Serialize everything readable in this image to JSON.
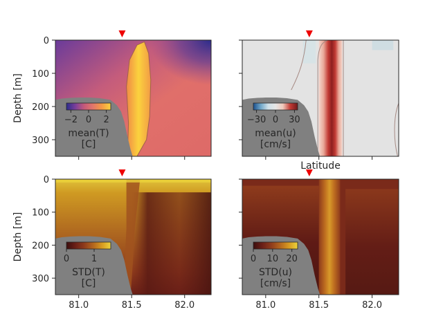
{
  "chart_data": [
    {
      "type": "heatmap",
      "panel": "top-left",
      "field": "mean(T)",
      "xlim": [
        80.78,
        82.25
      ],
      "ylim": [
        350,
        0
      ],
      "xticks": [
        "81.0",
        "81.5",
        "82.0"
      ],
      "xtick_values": [
        81.0,
        81.5,
        82.0
      ],
      "show_xticklabels": false,
      "yticks": [
        "0",
        "100",
        "200",
        "300"
      ],
      "ytick_values": [
        0,
        100,
        200,
        300
      ],
      "ylabel": "Depth [m]",
      "marker_lat": 81.41,
      "colorbar": {
        "ticks": [
          "−2",
          "0",
          "2"
        ],
        "tick_values": [
          -2,
          0,
          2
        ],
        "range": [
          -2.5,
          2.5
        ],
        "label_lines": [
          "mean(T)",
          "[C]"
        ]
      },
      "colors": [
        "#2b2c8c",
        "#7a3f9a",
        "#c55a7a",
        "#e3776a",
        "#f59a45",
        "#fbd23e"
      ]
    },
    {
      "type": "heatmap",
      "panel": "top-right",
      "field": "mean(u)",
      "xlim": [
        80.78,
        82.25
      ],
      "ylim": [
        350,
        0
      ],
      "xticks": [
        "81.0",
        "81.5",
        "82.0"
      ],
      "xtick_values": [
        81.0,
        81.5,
        82.0
      ],
      "show_xticklabels": false,
      "yticks": [
        "0",
        "100",
        "200",
        "300"
      ],
      "ytick_values": [
        0,
        100,
        200,
        300
      ],
      "show_yticklabels": false,
      "marker_lat": 81.41,
      "colorbar": {
        "ticks": [
          "−30",
          "0",
          "30"
        ],
        "tick_values": [
          -30,
          0,
          30
        ],
        "range": [
          -35,
          35
        ],
        "label_lines": [
          "mean(u)",
          "[cm/s]"
        ]
      },
      "colors": [
        "#1c4f8c",
        "#6fa6c8",
        "#cfe0e8",
        "#e6e6e6",
        "#f0c9bc",
        "#c23a34",
        "#6e1a1a"
      ]
    },
    {
      "type": "heatmap",
      "panel": "bottom-left",
      "field": "STD(T)",
      "xlim": [
        80.78,
        82.25
      ],
      "ylim": [
        350,
        0
      ],
      "xticks": [
        "81.0",
        "81.5",
        "82.0"
      ],
      "xtick_values": [
        81.0,
        81.5,
        82.0
      ],
      "yticks": [
        "0",
        "100",
        "200",
        "300"
      ],
      "ytick_values": [
        0,
        100,
        200,
        300
      ],
      "ylabel": "Depth [m]",
      "marker_lat": 81.41,
      "colorbar": {
        "ticks": [
          "0",
          "1"
        ],
        "tick_values": [
          0,
          1
        ],
        "range": [
          0,
          1.6
        ],
        "label_lines": [
          "STD(T)",
          "[C]"
        ]
      },
      "colors": [
        "#3b0e0e",
        "#6a1f17",
        "#8e3b1c",
        "#b3651e",
        "#d79a20",
        "#ecd33b"
      ]
    },
    {
      "type": "heatmap",
      "panel": "bottom-right",
      "field": "STD(u)",
      "xlim": [
        80.78,
        82.25
      ],
      "ylim": [
        350,
        0
      ],
      "xticks": [
        "81.0",
        "81.5",
        "82.0"
      ],
      "xtick_values": [
        81.0,
        81.5,
        82.0
      ],
      "yticks": [
        "0",
        "100",
        "200",
        "300"
      ],
      "ytick_values": [
        0,
        100,
        200,
        300
      ],
      "show_yticklabels": false,
      "title": "Latitude",
      "marker_lat": 81.41,
      "colorbar": {
        "ticks": [
          "0",
          "10",
          "20"
        ],
        "tick_values": [
          0,
          10,
          20
        ],
        "range": [
          0,
          23
        ],
        "label_lines": [
          "STD(u)",
          "[cm/s]"
        ]
      },
      "colors": [
        "#3b0e0e",
        "#6a1f17",
        "#8e3b1c",
        "#b3651e",
        "#d79a20",
        "#ecd33b"
      ]
    }
  ],
  "theme": {
    "land_color": "#808080",
    "marker_color": "#ee0000",
    "axis_color": "#262626"
  }
}
